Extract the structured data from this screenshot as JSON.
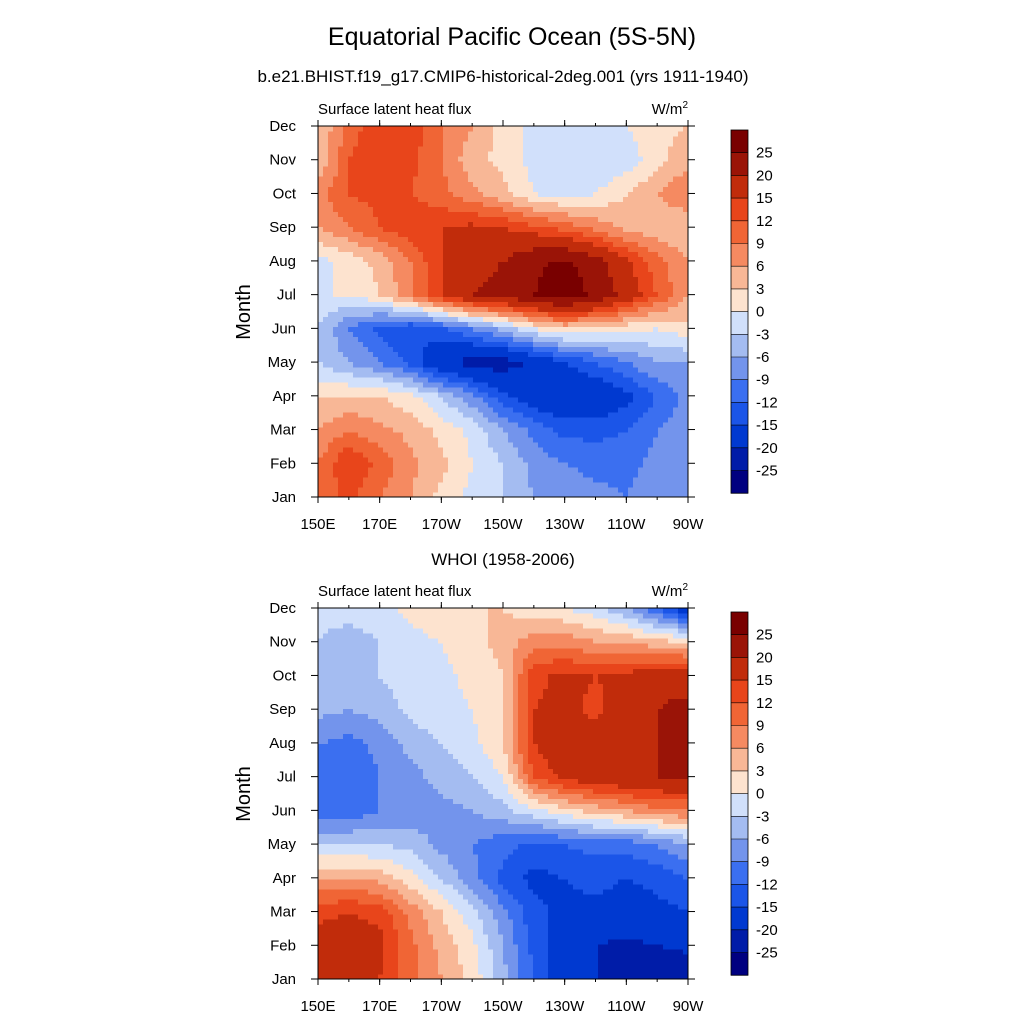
{
  "title": "Equatorial Pacific Ocean (5S-5N)",
  "subtitle": "b.e21.BHIST.f19_g17.CMIP6-historical-2deg.001 (yrs 1911-1940)",
  "chart_data": [
    {
      "type": "heatmap",
      "panel_title": "",
      "left_label": "Surface latent heat flux",
      "units_base": "W/m",
      "units_exp": "2",
      "ylabel": "Month",
      "x_ticks": [
        "150E",
        "170E",
        "170W",
        "150W",
        "130W",
        "110W",
        "90W"
      ],
      "y_ticks": [
        "Jan",
        "Feb",
        "Mar",
        "Apr",
        "May",
        "Jun",
        "Jul",
        "Aug",
        "Sep",
        "Oct",
        "Nov",
        "Dec"
      ],
      "xlim": [
        150,
        270
      ],
      "colorbar_labels": [
        "25",
        "20",
        "15",
        "12",
        "9",
        "6",
        "3",
        "0",
        "-3",
        "-6",
        "-9",
        "-12",
        "-15",
        "-20",
        "-25"
      ],
      "grid_x": [
        150,
        160,
        170,
        180,
        190,
        200,
        210,
        220,
        230,
        240,
        250,
        260,
        270
      ],
      "values": [
        [
          9,
          13,
          9,
          6,
          2,
          -1,
          -3,
          -6,
          -7,
          -8,
          -9,
          -7,
          -6
        ],
        [
          9,
          15,
          11,
          7,
          4,
          0,
          -3,
          -7,
          -9,
          -10,
          -10,
          -8,
          -6
        ],
        [
          6,
          9,
          7,
          5,
          2,
          -1,
          -6,
          -10,
          -13,
          -13,
          -12,
          -9,
          -7
        ],
        [
          3,
          3,
          3,
          1,
          -3,
          -8,
          -14,
          -18,
          -19,
          -19,
          -16,
          -12,
          -8
        ],
        [
          -3,
          -6,
          -9,
          -13,
          -19,
          -22,
          -22,
          -19,
          -15,
          -12,
          -9,
          -6,
          -6
        ],
        [
          -3,
          -9,
          -13,
          -15,
          -13,
          -9,
          -5,
          0,
          3,
          2,
          1,
          0,
          2
        ],
        [
          0,
          0,
          3,
          8,
          15,
          20,
          22,
          25,
          28,
          24,
          18,
          12,
          6
        ],
        [
          -1,
          1,
          4,
          9,
          15,
          18,
          20,
          24,
          26,
          22,
          16,
          10,
          6
        ],
        [
          6,
          9,
          12,
          14,
          15,
          16,
          15,
          13,
          11,
          8,
          5,
          4,
          3
        ],
        [
          8,
          12,
          13,
          12,
          10,
          7,
          4,
          0,
          -1,
          0,
          3,
          6,
          9
        ],
        [
          3,
          12,
          15,
          13,
          9,
          4,
          2,
          -1,
          -2,
          -3,
          -2,
          2,
          5
        ],
        [
          3,
          10,
          15,
          14,
          9,
          6,
          2,
          -1,
          -3,
          -2,
          0,
          2,
          3
        ]
      ]
    },
    {
      "type": "heatmap",
      "panel_title": "WHOI (1958-2006)",
      "left_label": "Surface latent heat flux",
      "units_base": "W/m",
      "units_exp": "2",
      "ylabel": "Month",
      "x_ticks": [
        "150E",
        "170E",
        "170W",
        "150W",
        "130W",
        "110W",
        "90W"
      ],
      "y_ticks": [
        "Jan",
        "Feb",
        "Mar",
        "Apr",
        "May",
        "Jun",
        "Jul",
        "Aug",
        "Sep",
        "Oct",
        "Nov",
        "Dec"
      ],
      "xlim": [
        150,
        270
      ],
      "colorbar_labels": [
        "25",
        "20",
        "15",
        "12",
        "9",
        "6",
        "3",
        "0",
        "-3",
        "-6",
        "-9",
        "-12",
        "-15",
        "-20",
        "-25"
      ],
      "grid_x": [
        150,
        160,
        170,
        180,
        190,
        200,
        210,
        220,
        230,
        240,
        250,
        260,
        270
      ],
      "values": [
        [
          15,
          17,
          15,
          10,
          6,
          2,
          -5,
          -12,
          -18,
          -20,
          -22,
          -23,
          -24
        ],
        [
          17,
          18,
          16,
          10,
          5,
          1,
          -6,
          -13,
          -18,
          -20,
          -21,
          -20,
          -19
        ],
        [
          14,
          15,
          14,
          8,
          3,
          -2,
          -8,
          -14,
          -16,
          -16,
          -17,
          -16,
          -15
        ],
        [
          6,
          6,
          5,
          1,
          -3,
          -8,
          -13,
          -16,
          -15,
          -14,
          -15,
          -14,
          -12
        ],
        [
          -3,
          -3,
          -3,
          -4,
          -7,
          -9,
          -11,
          -13,
          -12,
          -11,
          -11,
          -9,
          -6
        ],
        [
          -11,
          -11,
          -9,
          -8,
          -7,
          -6,
          -4,
          -1,
          2,
          4,
          6,
          8,
          9
        ],
        [
          -11,
          -12,
          -9,
          -7,
          -5,
          -3,
          0,
          12,
          16,
          18,
          19,
          20,
          20
        ],
        [
          -9,
          -10,
          -8,
          -5,
          -3,
          -1,
          3,
          15,
          19,
          17,
          18,
          20,
          20
        ],
        [
          -5,
          -6,
          -5,
          -2,
          -1,
          0,
          3,
          15,
          16,
          14,
          17,
          20,
          22
        ],
        [
          -4,
          -5,
          -3,
          -1,
          -1,
          1,
          3,
          14,
          16,
          15,
          16,
          18,
          17
        ],
        [
          -3,
          -5,
          -3,
          -1,
          0,
          2,
          4,
          8,
          8,
          6,
          6,
          4,
          3
        ],
        [
          -2,
          -1,
          -1,
          1,
          2,
          3,
          3,
          1,
          0,
          -2,
          -6,
          -12,
          -18
        ]
      ]
    }
  ],
  "colors": {
    "levels": [
      "#000080",
      "#001ca8",
      "#0039d0",
      "#1b55e8",
      "#3b6ff0",
      "#7394ec",
      "#a4bcf1",
      "#d1e0fb",
      "#fde3cf",
      "#f8b796",
      "#f58a61",
      "#f06535",
      "#e8451b",
      "#c12c0b",
      "#9a1407",
      "#790000"
    ]
  }
}
